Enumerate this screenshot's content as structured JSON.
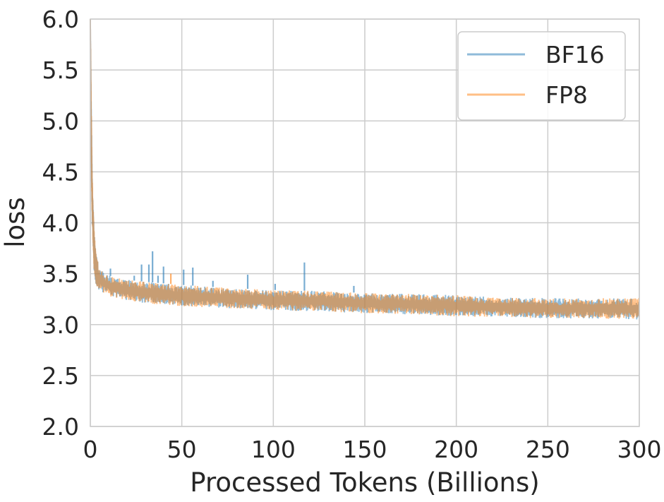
{
  "chart_data": {
    "type": "line",
    "title": "",
    "xlabel": "Processed Tokens (Billions)",
    "ylabel": "loss",
    "xlim": [
      0,
      300
    ],
    "ylim": [
      2.0,
      6.0
    ],
    "xticks": [
      0,
      50,
      100,
      150,
      200,
      250,
      300
    ],
    "xtick_labels": [
      "0",
      "50",
      "100",
      "150",
      "200",
      "250",
      "300"
    ],
    "yticks": [
      2.0,
      2.5,
      3.0,
      3.5,
      4.0,
      4.5,
      5.0,
      5.5,
      6.0
    ],
    "ytick_labels": [
      "2.0",
      "2.5",
      "3.0",
      "3.5",
      "4.0",
      "4.5",
      "5.0",
      "5.5",
      "6.0"
    ],
    "grid": true,
    "legend_position": "top-right",
    "series": [
      {
        "name": "BF16",
        "color": "#1f77b4",
        "opacity": 0.5,
        "upper": {
          "x": [
            0,
            0.5,
            1,
            2,
            3,
            5,
            8,
            12,
            20,
            30,
            50,
            75,
            100,
            125,
            150,
            175,
            200,
            225,
            250,
            275,
            300
          ],
          "y": [
            6.0,
            5.2,
            4.5,
            3.95,
            3.7,
            3.55,
            3.5,
            3.47,
            3.44,
            3.42,
            3.39,
            3.36,
            3.34,
            3.33,
            3.31,
            3.3,
            3.29,
            3.27,
            3.26,
            3.26,
            3.26
          ]
        },
        "lower": {
          "x": [
            0,
            0.5,
            1,
            2,
            3,
            5,
            8,
            12,
            20,
            30,
            50,
            75,
            100,
            125,
            150,
            175,
            200,
            225,
            250,
            275,
            300
          ],
          "y": [
            6.0,
            4.6,
            4.0,
            3.55,
            3.4,
            3.33,
            3.3,
            3.27,
            3.24,
            3.21,
            3.18,
            3.16,
            3.14,
            3.13,
            3.11,
            3.1,
            3.08,
            3.07,
            3.06,
            3.06,
            3.05
          ]
        },
        "spikes": [
          {
            "x": 11,
            "y": 3.55
          },
          {
            "x": 24,
            "y": 3.48
          },
          {
            "x": 28,
            "y": 3.59
          },
          {
            "x": 32,
            "y": 3.59
          },
          {
            "x": 34,
            "y": 3.72
          },
          {
            "x": 37,
            "y": 3.48
          },
          {
            "x": 40,
            "y": 3.57
          },
          {
            "x": 51,
            "y": 3.54
          },
          {
            "x": 56,
            "y": 3.56
          },
          {
            "x": 67,
            "y": 3.43
          },
          {
            "x": 86,
            "y": 3.49
          },
          {
            "x": 101,
            "y": 3.4
          },
          {
            "x": 117,
            "y": 3.61
          },
          {
            "x": 144,
            "y": 3.38
          }
        ]
      },
      {
        "name": "FP8",
        "color": "#ff7f0e",
        "opacity": 0.5,
        "upper": {
          "x": [
            0,
            0.5,
            1,
            2,
            3,
            5,
            8,
            12,
            20,
            30,
            50,
            75,
            100,
            125,
            150,
            175,
            200,
            225,
            250,
            275,
            300
          ],
          "y": [
            6.0,
            5.2,
            4.5,
            3.95,
            3.7,
            3.55,
            3.5,
            3.47,
            3.44,
            3.42,
            3.39,
            3.36,
            3.34,
            3.33,
            3.31,
            3.3,
            3.29,
            3.27,
            3.26,
            3.26,
            3.26
          ]
        },
        "lower": {
          "x": [
            0,
            0.5,
            1,
            2,
            3,
            5,
            8,
            12,
            20,
            30,
            50,
            75,
            100,
            125,
            150,
            175,
            200,
            225,
            250,
            275,
            300
          ],
          "y": [
            6.0,
            4.6,
            4.0,
            3.55,
            3.4,
            3.33,
            3.3,
            3.27,
            3.24,
            3.21,
            3.18,
            3.16,
            3.14,
            3.13,
            3.11,
            3.1,
            3.08,
            3.07,
            3.06,
            3.06,
            3.05
          ]
        },
        "spikes": [
          {
            "x": 44,
            "y": 3.5
          }
        ]
      }
    ]
  }
}
